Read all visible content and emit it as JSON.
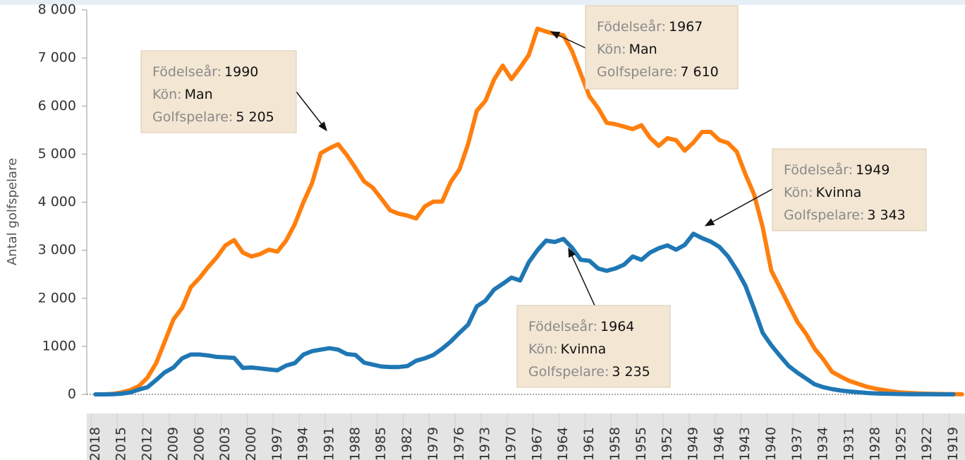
{
  "chart_data": {
    "type": "line",
    "y_label": "Antal golfspelare",
    "x": [
      2018,
      2017,
      2016,
      2015,
      2014,
      2013,
      2012,
      2011,
      2010,
      2009,
      2008,
      2007,
      2006,
      2005,
      2004,
      2003,
      2002,
      2001,
      2000,
      1999,
      1998,
      1997,
      1996,
      1995,
      1994,
      1993,
      1992,
      1991,
      1990,
      1989,
      1988,
      1987,
      1986,
      1985,
      1984,
      1983,
      1982,
      1981,
      1980,
      1979,
      1978,
      1977,
      1976,
      1975,
      1974,
      1973,
      1972,
      1971,
      1970,
      1969,
      1968,
      1967,
      1966,
      1965,
      1964,
      1963,
      1962,
      1961,
      1960,
      1959,
      1958,
      1957,
      1956,
      1955,
      1954,
      1953,
      1952,
      1951,
      1950,
      1949,
      1948,
      1947,
      1946,
      1945,
      1944,
      1943,
      1942,
      1941,
      1940,
      1939,
      1938,
      1937,
      1936,
      1935,
      1934,
      1933,
      1932,
      1931,
      1930,
      1929,
      1928,
      1927,
      1926,
      1925,
      1924,
      1923,
      1922,
      1921,
      1920,
      1919,
      1918
    ],
    "series": [
      {
        "name": "Man",
        "color": "#ff7f0e",
        "values": [
          0,
          0,
          10,
          40,
          90,
          170,
          350,
          650,
          1100,
          1560,
          1800,
          2230,
          2420,
          2650,
          2850,
          3100,
          3210,
          2950,
          2870,
          2920,
          3010,
          2970,
          3200,
          3540,
          4000,
          4400,
          5020,
          5120,
          5205,
          4980,
          4710,
          4430,
          4300,
          4070,
          3830,
          3760,
          3720,
          3660,
          3910,
          4010,
          4010,
          4420,
          4680,
          5210,
          5900,
          6110,
          6550,
          6840,
          6560,
          6800,
          7060,
          7610,
          7550,
          7500,
          7470,
          7140,
          6670,
          6200,
          5960,
          5650,
          5620,
          5570,
          5520,
          5600,
          5340,
          5170,
          5330,
          5290,
          5070,
          5240,
          5460,
          5460,
          5290,
          5230,
          5050,
          4580,
          4160,
          3480,
          2570,
          2220,
          1860,
          1510,
          1260,
          950,
          730,
          470,
          370,
          280,
          220,
          160,
          120,
          90,
          60,
          40,
          30,
          20,
          15,
          10,
          8,
          5,
          3
        ]
      },
      {
        "name": "Kvinna",
        "color": "#1f77b4",
        "values": [
          0,
          0,
          5,
          15,
          40,
          100,
          150,
          300,
          460,
          560,
          750,
          830,
          830,
          810,
          780,
          770,
          760,
          550,
          560,
          540,
          520,
          500,
          600,
          650,
          830,
          900,
          930,
          960,
          930,
          840,
          820,
          660,
          620,
          580,
          570,
          570,
          590,
          700,
          750,
          820,
          950,
          1100,
          1280,
          1450,
          1830,
          1950,
          2180,
          2300,
          2430,
          2370,
          2750,
          3000,
          3200,
          3170,
          3235,
          3050,
          2800,
          2780,
          2620,
          2570,
          2620,
          2700,
          2870,
          2800,
          2950,
          3040,
          3100,
          3010,
          3110,
          3343,
          3250,
          3180,
          3070,
          2870,
          2590,
          2260,
          1780,
          1280,
          1020,
          800,
          590,
          450,
          330,
          210,
          150,
          110,
          80,
          60,
          45,
          30,
          20,
          15,
          10,
          8,
          5,
          4,
          3,
          2,
          1,
          1,
          null
        ]
      }
    ],
    "xlim": [
      2018.6,
      1917.9
    ],
    "xticks": [
      2018,
      2015,
      2012,
      2009,
      2006,
      2003,
      2000,
      1997,
      1994,
      1991,
      1988,
      1985,
      1982,
      1979,
      1976,
      1973,
      1970,
      1967,
      1964,
      1961,
      1958,
      1955,
      1952,
      1949,
      1946,
      1943,
      1940,
      1937,
      1934,
      1931,
      1928,
      1925,
      1922,
      1919
    ],
    "ylim": [
      0,
      8000
    ],
    "yticks": [
      0,
      {
        "value": 1000,
        "label": "1000"
      },
      {
        "value": 2000,
        "label": "2 000"
      },
      {
        "value": 3000,
        "label": "3 000"
      },
      {
        "value": 4000,
        "label": "4 000"
      },
      {
        "value": 5000,
        "label": "5 000"
      },
      {
        "value": 6000,
        "label": "6 000"
      },
      {
        "value": 7000,
        "label": "7 000"
      },
      {
        "value": 8000,
        "label": "8 000"
      }
    ],
    "annotations": [
      {
        "lines": [
          [
            "Födelseår:",
            "1990"
          ],
          [
            "Kön:",
            "Man"
          ],
          [
            "Golfspelare:",
            "5 205"
          ]
        ]
      },
      {
        "lines": [
          [
            "Födelseår:",
            "1967"
          ],
          [
            "Kön:",
            "Man"
          ],
          [
            "Golfspelare:",
            "7 610"
          ]
        ]
      },
      {
        "lines": [
          [
            "Födelseår:",
            "1949"
          ],
          [
            "Kön:",
            "Kvinna"
          ],
          [
            "Golfspelare:",
            "3 343"
          ]
        ]
      },
      {
        "lines": [
          [
            "Födelseår:",
            "1964"
          ],
          [
            "Kön:",
            "Kvinna"
          ],
          [
            "Golfspelare:",
            "3 235"
          ]
        ]
      }
    ]
  }
}
